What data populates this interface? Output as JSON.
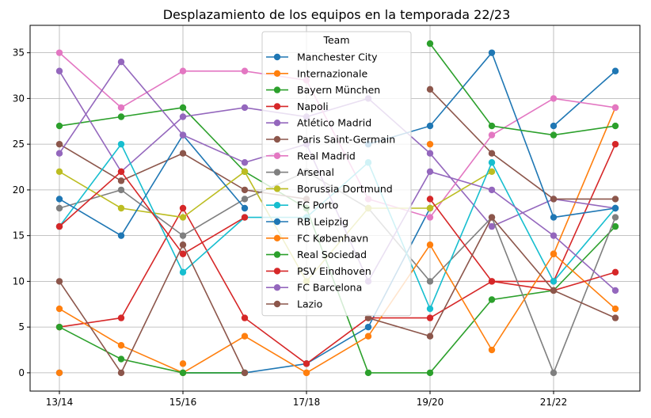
{
  "chart_data": {
    "type": "line",
    "title": "Desplazamiento de los equipos en la temporada 22/23",
    "xlabel": "",
    "ylabel": "",
    "x": [
      "13/14",
      "14/15",
      "15/16",
      "16/17",
      "17/18",
      "18/19",
      "19/20",
      "20/21",
      "21/22",
      "22/23"
    ],
    "x_tick_labels": [
      "13/14",
      "15/16",
      "17/18",
      "19/20",
      "21/22"
    ],
    "ylim": [
      -2,
      38
    ],
    "y_ticks": [
      0,
      5,
      10,
      15,
      20,
      25,
      30,
      35
    ],
    "grid": true,
    "legend_title": "Team",
    "legend_placement": "top-center",
    "series": [
      {
        "name": "Manchester City",
        "color": "#1f77b4",
        "values": [
          0,
          null,
          0,
          0,
          1,
          5,
          18,
          null,
          27,
          33
        ]
      },
      {
        "name": "Internazionale",
        "color": "#ff7f0e",
        "values": [
          0,
          null,
          1,
          null,
          0,
          null,
          25,
          null,
          13,
          29
        ]
      },
      {
        "name": "Bayern München",
        "color": "#2ca02c",
        "values": [
          27,
          28,
          29,
          22,
          18,
          0,
          0,
          8,
          9,
          16
        ]
      },
      {
        "name": "Napoli",
        "color": "#d62728",
        "values": [
          5,
          6,
          18,
          6,
          1,
          6,
          6,
          10,
          10,
          25
        ]
      },
      {
        "name": "Atlético Madrid",
        "color": "#9467bd",
        "values": [
          33,
          22,
          28,
          29,
          28,
          30,
          24,
          16,
          19,
          18
        ]
      },
      {
        "name": "Paris Saint-Germain",
        "color": "#8c564b",
        "values": [
          25,
          21,
          24,
          20,
          19,
          null,
          31,
          24,
          19,
          19
        ]
      },
      {
        "name": "Real Madrid",
        "color": "#e377c2",
        "values": [
          35,
          29,
          33,
          33,
          32,
          19,
          17,
          26,
          30,
          29
        ]
      },
      {
        "name": "Arsenal",
        "color": "#7f7f7f",
        "values": [
          18,
          20,
          15,
          19,
          22,
          18,
          10,
          17,
          0,
          17
        ]
      },
      {
        "name": "Borussia Dortmund",
        "color": "#bcbd22",
        "values": [
          22,
          18,
          17,
          22,
          10,
          18,
          18,
          22,
          null,
          null
        ]
      },
      {
        "name": "FC Porto",
        "color": "#17becf",
        "values": [
          16,
          25,
          11,
          17,
          17,
          23,
          7,
          23,
          10,
          18
        ]
      },
      {
        "name": "RB Leipzig",
        "color": "#1f77b4",
        "values": [
          19,
          15,
          26,
          18,
          null,
          25,
          27,
          35,
          17,
          18
        ]
      },
      {
        "name": "FC København",
        "color": "#ff7f0e",
        "values": [
          7,
          3,
          0,
          4,
          0,
          4,
          14,
          2.5,
          13,
          7
        ]
      },
      {
        "name": "Real Sociedad",
        "color": "#2ca02c",
        "values": [
          5,
          1.5,
          0,
          0,
          null,
          null,
          36,
          27,
          26,
          27
        ]
      },
      {
        "name": "PSV Eindhoven",
        "color": "#d62728",
        "values": [
          16,
          22,
          13,
          17,
          null,
          null,
          19,
          10,
          9,
          11
        ]
      },
      {
        "name": "FC Barcelona",
        "color": "#9467bd",
        "values": [
          24,
          34,
          26,
          23,
          25,
          10,
          22,
          20,
          15,
          9
        ]
      },
      {
        "name": "Lazio",
        "color": "#8c564b",
        "values": [
          10,
          0,
          14,
          0,
          null,
          6,
          4,
          17,
          9,
          6
        ]
      }
    ]
  }
}
